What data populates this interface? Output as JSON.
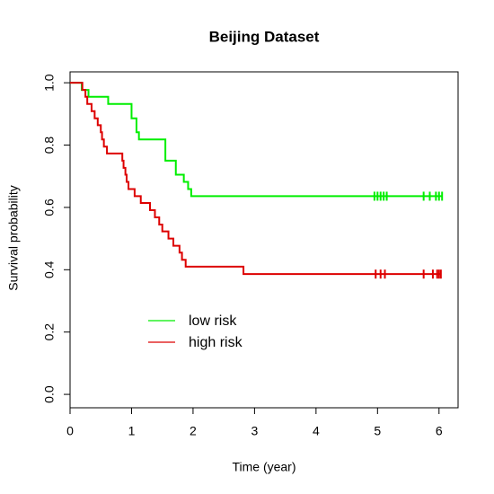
{
  "chart_data": {
    "type": "step",
    "title": "Beijing Dataset",
    "xlabel": "Time (year)",
    "ylabel": "Survival probability",
    "xlim": [
      0,
      6.31
    ],
    "ylim": [
      -0.043,
      1.035
    ],
    "xticks": [
      0,
      1,
      2,
      3,
      4,
      5,
      6
    ],
    "yticks": [
      {
        "value": 0,
        "label": "0.0"
      },
      {
        "value": 0.2,
        "label": "0.2"
      },
      {
        "value": 0.4,
        "label": "0.4"
      },
      {
        "value": 0.6,
        "label": "0.6"
      },
      {
        "value": 0.8,
        "label": "0.8"
      },
      {
        "value": 1,
        "label": "1.0"
      }
    ],
    "legend": "bottom-left",
    "series": [
      {
        "name": "low risk",
        "color": "#00ee00",
        "x": [
          0,
          0.19,
          0.3,
          0.62,
          1.0,
          1.08,
          1.12,
          1.55,
          1.72,
          1.85,
          1.92,
          1.97
        ],
        "values": [
          1.0,
          0.977,
          0.955,
          0.932,
          0.886,
          0.841,
          0.818,
          0.75,
          0.705,
          0.682,
          0.659,
          0.636
        ],
        "censor_x": [
          4.95,
          5.0,
          5.05,
          5.1,
          5.15,
          5.75,
          5.85,
          5.95,
          6.0,
          6.05
        ],
        "censor_values": [
          0.636,
          0.636,
          0.636,
          0.636,
          0.636,
          0.636,
          0.636,
          0.636,
          0.636,
          0.636
        ]
      },
      {
        "name": "high risk",
        "color": "#dd0000",
        "x": [
          0,
          0.2,
          0.25,
          0.28,
          0.35,
          0.4,
          0.45,
          0.5,
          0.52,
          0.55,
          0.6,
          0.85,
          0.87,
          0.9,
          0.92,
          0.95,
          1.05,
          1.15,
          1.3,
          1.38,
          1.45,
          1.5,
          1.6,
          1.68,
          1.78,
          1.82,
          1.88,
          2.82
        ],
        "values": [
          1.0,
          0.977,
          0.955,
          0.932,
          0.909,
          0.886,
          0.864,
          0.841,
          0.818,
          0.795,
          0.773,
          0.75,
          0.727,
          0.705,
          0.682,
          0.659,
          0.636,
          0.614,
          0.591,
          0.568,
          0.545,
          0.523,
          0.5,
          0.477,
          0.455,
          0.432,
          0.41,
          0.386
        ],
        "censor_x": [
          4.97,
          5.05,
          5.12,
          5.75,
          5.9,
          5.97,
          6.0,
          6.03
        ],
        "censor_values": [
          0.386,
          0.386,
          0.386,
          0.386,
          0.386,
          0.386,
          0.386,
          0.386
        ]
      }
    ]
  }
}
